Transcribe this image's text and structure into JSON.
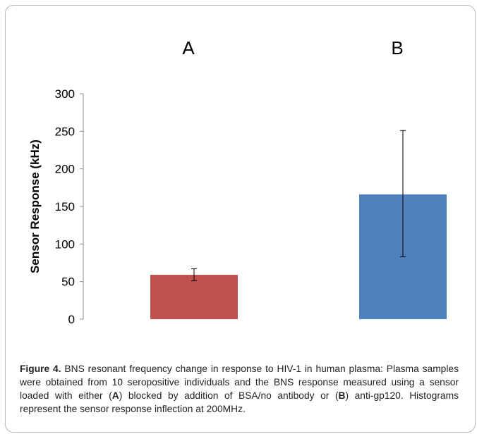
{
  "chart_data": {
    "type": "bar",
    "categories": [
      "A",
      "B"
    ],
    "values": [
      59,
      166
    ],
    "error_low": [
      51,
      83
    ],
    "error_high": [
      67,
      251
    ],
    "ylabel": "Sensor Response (kHz)",
    "ylim": [
      0,
      300
    ],
    "yticks": [
      0,
      50,
      100,
      150,
      200,
      250,
      300
    ],
    "grid": false,
    "colors": [
      "#c0504d",
      "#4f81bd"
    ]
  },
  "caption": {
    "label": "Figure 4.",
    "part1": " BNS resonant frequency change in response to HIV-1 in human plasma: Plasma samples were obtained from 10 seropositive individuals and the BNS response measured using a sensor loaded with either (",
    "a": "A",
    "part2": ") blocked by addition of BSA/no antibody or (",
    "b": "B",
    "part3": ") anti-gp120. Histograms represent the sensor response inflection at 200MHz."
  }
}
